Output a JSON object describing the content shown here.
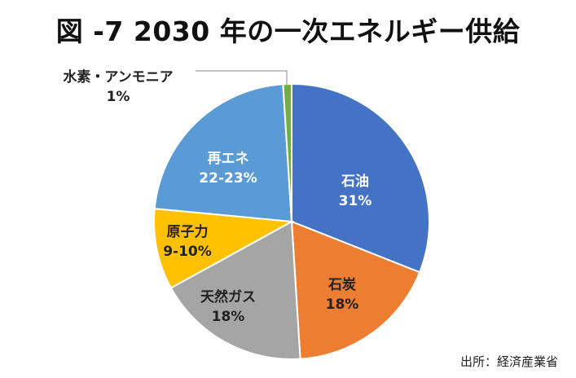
{
  "chart_data": {
    "type": "pie",
    "title": "図 -7 2030 年の一次エネルギー供給",
    "source": "出所：経済産業省",
    "slices": [
      {
        "label": "石油",
        "value_label": "31%",
        "value": 31,
        "color": "#4472C4",
        "label_color": "#ffffff"
      },
      {
        "label": "石炭",
        "value_label": "18%",
        "value": 18,
        "color": "#ED7D31",
        "label_color": "#222222"
      },
      {
        "label": "天然ガス",
        "value_label": "18%",
        "value": 18,
        "color": "#A5A5A5",
        "label_color": "#222222"
      },
      {
        "label": "原子力",
        "value_label": "9-10%",
        "value": 9.5,
        "color": "#FFC000",
        "label_color": "#222222"
      },
      {
        "label": "再エネ",
        "value_label": "22-23%",
        "value": 22.5,
        "color": "#5B9BD5",
        "label_color": "#ffffff"
      },
      {
        "label": "水素・アンモニア",
        "value_label": "1%",
        "value": 1,
        "color": "#70AD47",
        "label_color": "#222222"
      }
    ]
  }
}
